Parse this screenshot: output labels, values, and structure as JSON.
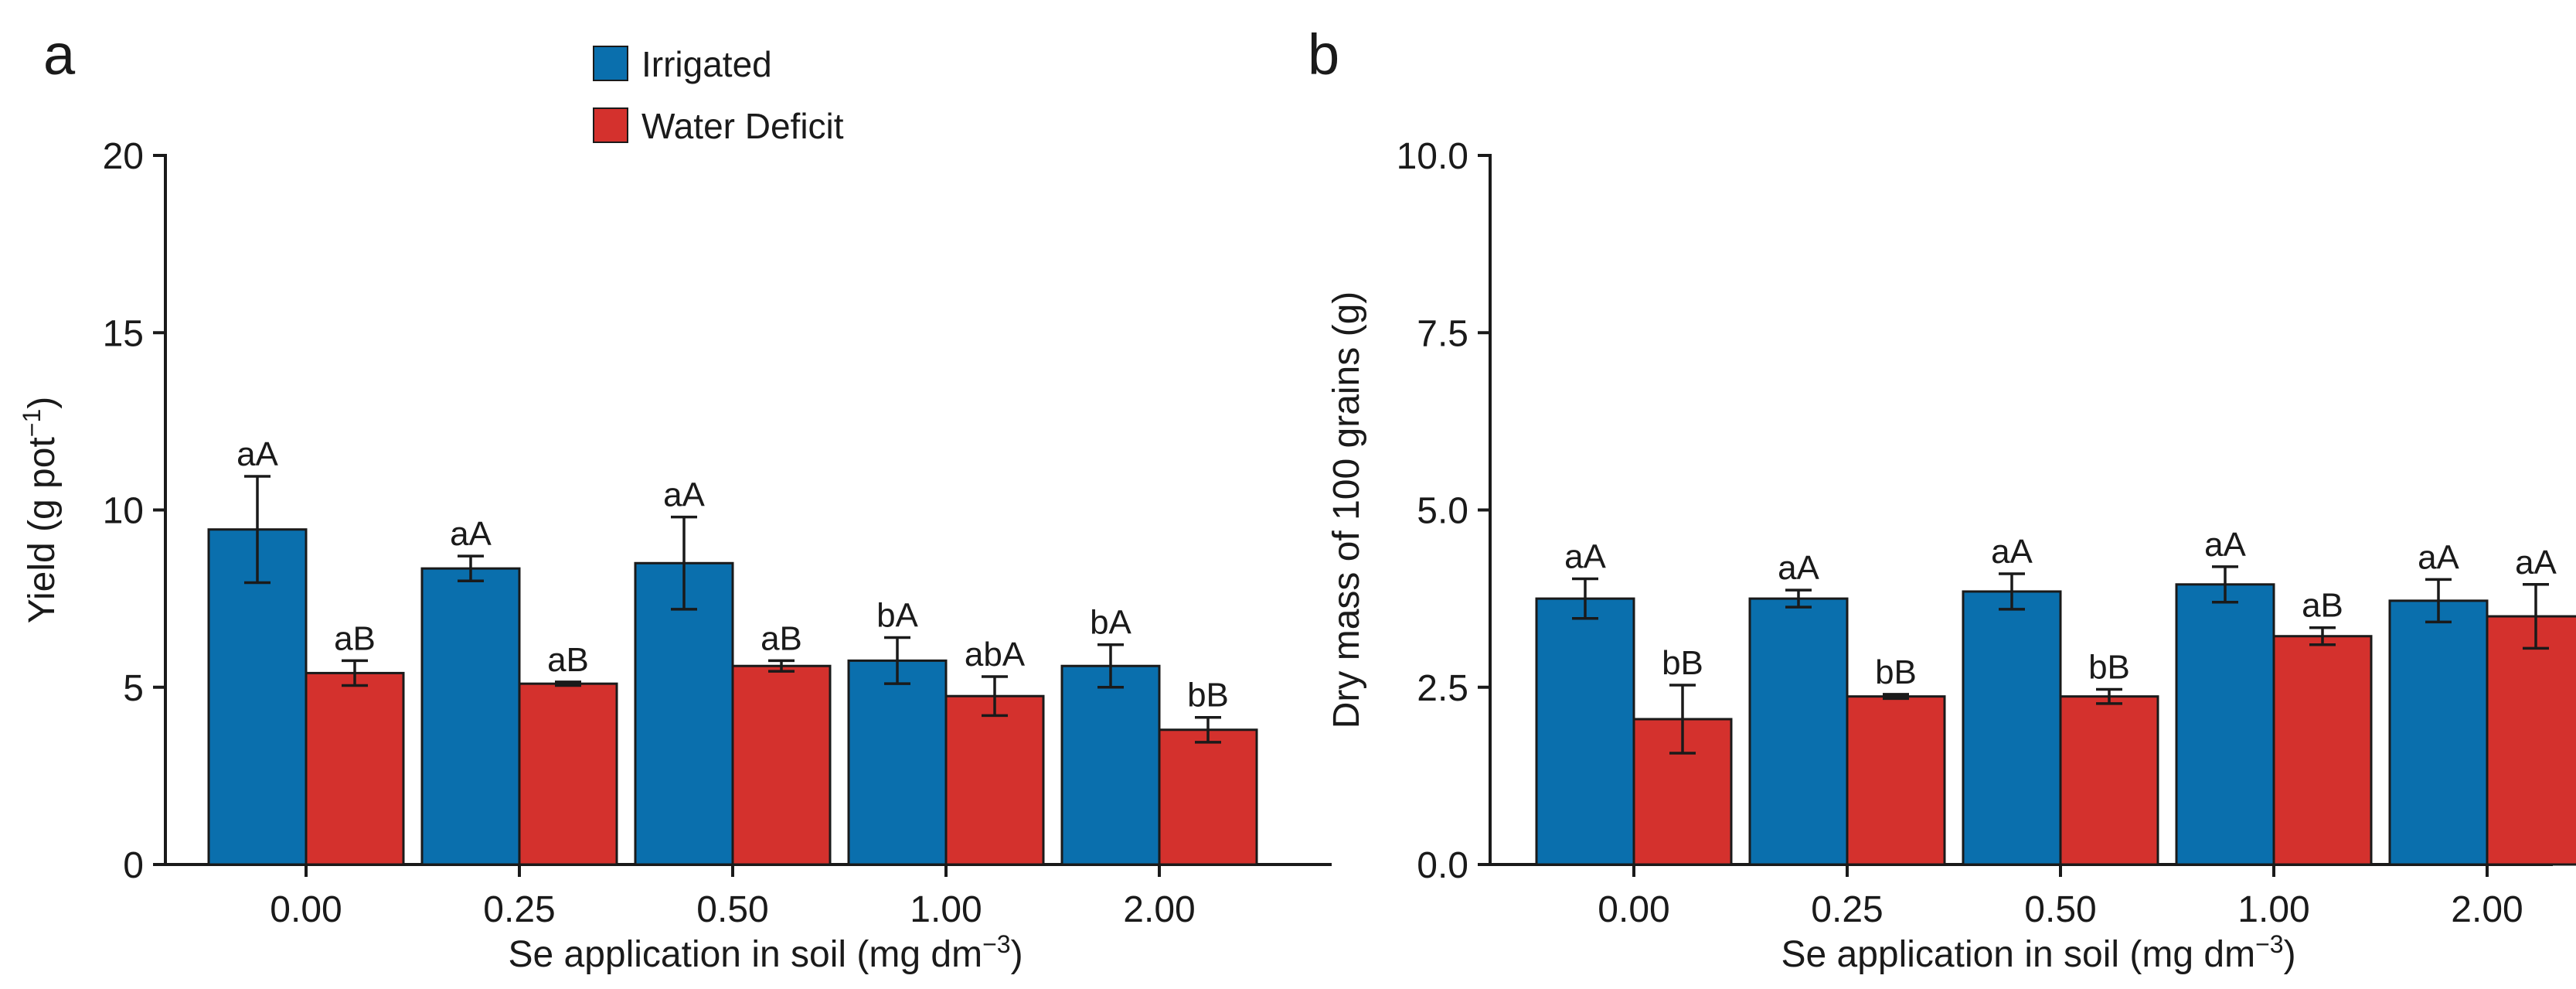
{
  "legend": [
    {
      "label": "Irrigated",
      "color": "#0a6fad"
    },
    {
      "label": "Water Deficit",
      "color": "#d4312d"
    }
  ],
  "chart_data": [
    {
      "type": "bar",
      "panel_label": "a",
      "title": "",
      "xlabel": "Se application in soil (mg dm",
      "xlabel_sup": "−3",
      "xlabel_tail": ")",
      "ylabel": "Yield  (g pot",
      "ylabel_sup": "−1",
      "ylabel_tail": ")",
      "ylim": [
        0,
        20
      ],
      "yticks": [
        0,
        5,
        10,
        15,
        20
      ],
      "ytick_labels": [
        "0",
        "5",
        "10",
        "15",
        "20"
      ],
      "categories": [
        "0.00",
        "0.25",
        "0.50",
        "1.00",
        "2.00"
      ],
      "series": [
        {
          "name": "Irrigated",
          "color": "#0a6fad",
          "values": [
            9.45,
            8.35,
            8.5,
            5.75,
            5.6
          ],
          "errors": [
            1.5,
            0.35,
            1.3,
            0.65,
            0.6
          ],
          "labels": [
            "aA",
            "aA",
            "aA",
            "bA",
            "bA"
          ]
        },
        {
          "name": "Water Deficit",
          "color": "#d4312d",
          "values": [
            5.4,
            5.1,
            5.6,
            4.75,
            3.8
          ],
          "errors": [
            0.35,
            0.05,
            0.15,
            0.55,
            0.35
          ],
          "labels": [
            "aB",
            "aB",
            "aB",
            "abA",
            "bB"
          ]
        }
      ]
    },
    {
      "type": "bar",
      "panel_label": "b",
      "title": "",
      "xlabel": "Se application in soil (mg dm",
      "xlabel_sup": "−3",
      "xlabel_tail": ")",
      "ylabel": "Dry mass of 100 grains (g)",
      "ylabel_sup": "",
      "ylabel_tail": "",
      "ylim": [
        0,
        10
      ],
      "yticks": [
        0,
        2.5,
        5,
        7.5,
        10
      ],
      "ytick_labels": [
        "0.0",
        "2.5",
        "5.0",
        "7.5",
        "10.0"
      ],
      "categories": [
        "0.00",
        "0.25",
        "0.50",
        "1.00",
        "2.00"
      ],
      "series": [
        {
          "name": "Irrigated",
          "color": "#0a6fad",
          "values": [
            3.75,
            3.75,
            3.85,
            3.95,
            3.72
          ],
          "errors": [
            0.28,
            0.12,
            0.25,
            0.25,
            0.3
          ],
          "labels": [
            "aA",
            "aA",
            "aA",
            "aA",
            "aA"
          ]
        },
        {
          "name": "Water Deficit",
          "color": "#d4312d",
          "values": [
            2.05,
            2.37,
            2.37,
            3.22,
            3.5
          ],
          "errors": [
            0.48,
            0.03,
            0.1,
            0.12,
            0.45
          ],
          "labels": [
            "bB",
            "bB",
            "bB",
            "aB",
            "aA"
          ]
        }
      ]
    }
  ]
}
